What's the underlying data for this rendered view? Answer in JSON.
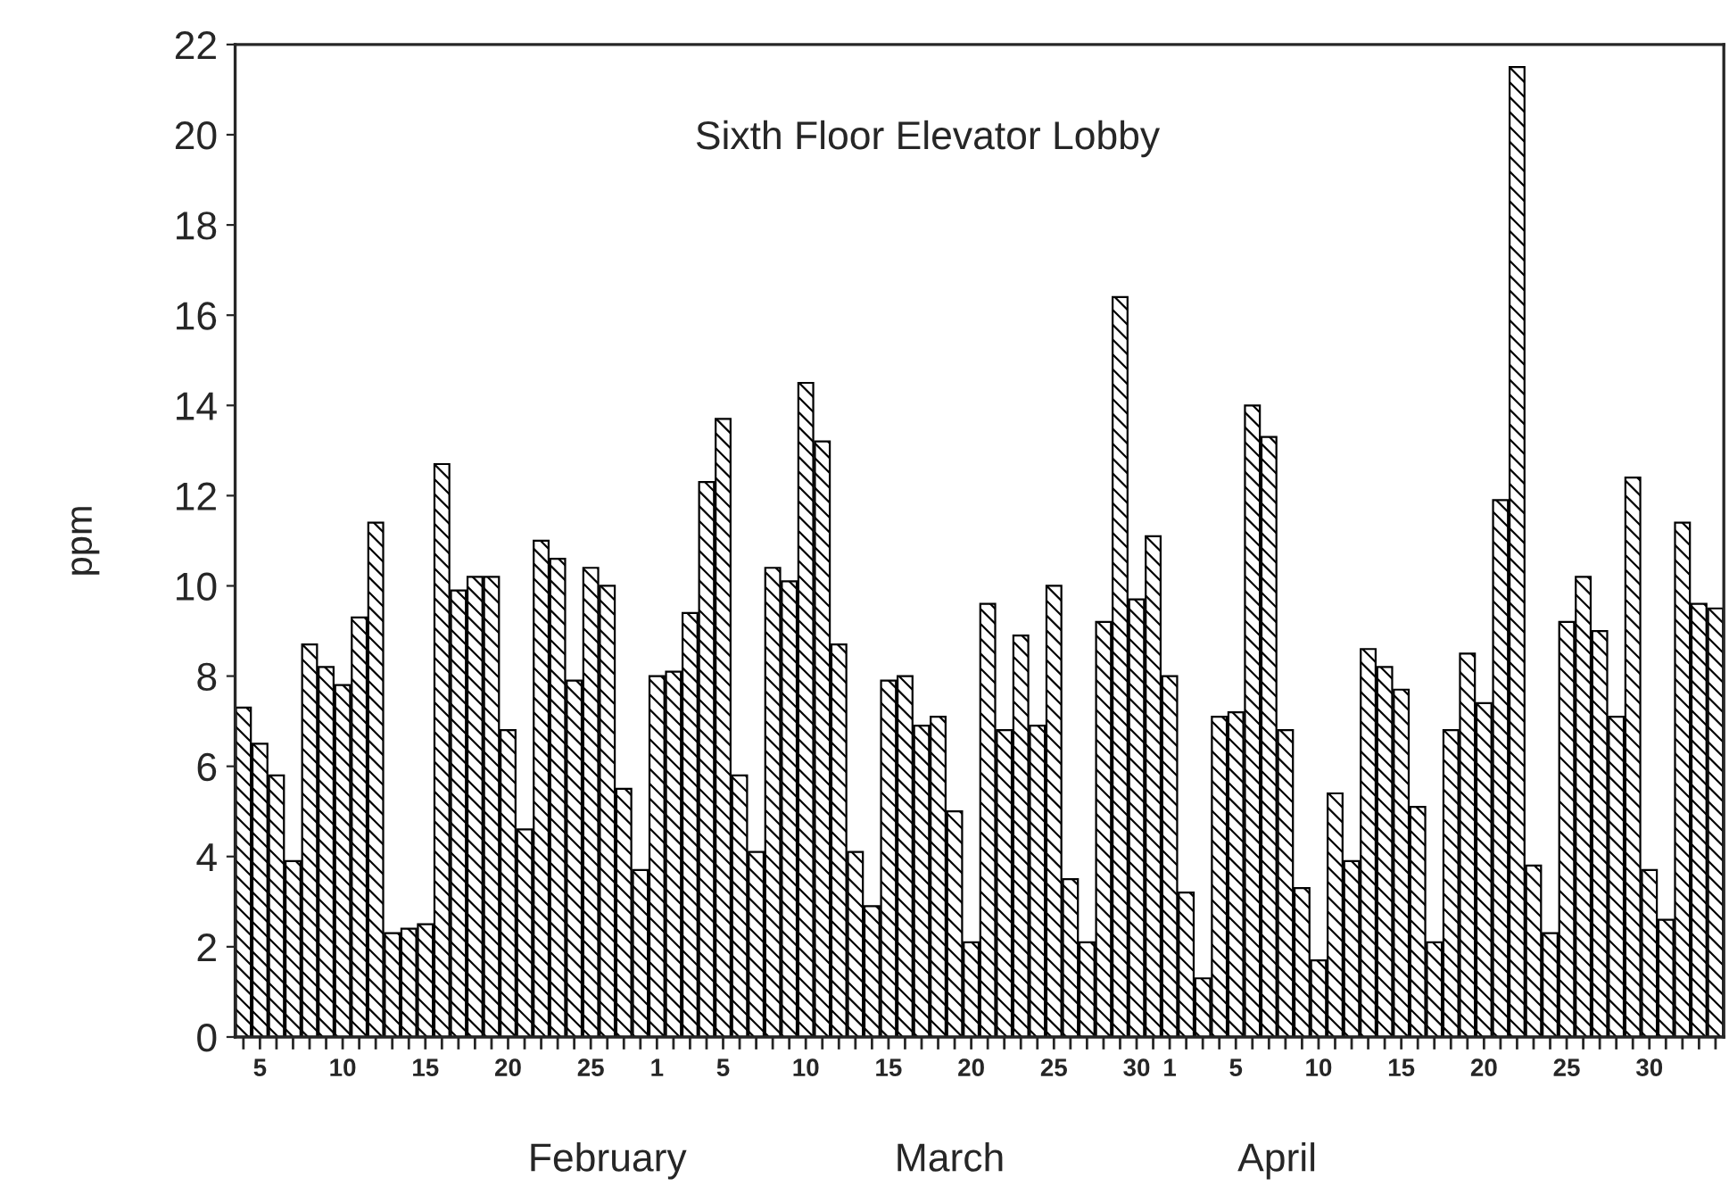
{
  "chart_data": {
    "type": "bar",
    "title": "Sixth Floor Elevator Lobby",
    "ylabel": "ppm",
    "categories": [
      null,
      "5",
      null,
      null,
      null,
      null,
      "10",
      null,
      null,
      null,
      null,
      "15",
      null,
      null,
      null,
      null,
      "20",
      null,
      null,
      null,
      null,
      "25",
      null,
      null,
      null,
      "1",
      null,
      null,
      null,
      "5",
      null,
      null,
      null,
      null,
      "10",
      null,
      null,
      null,
      null,
      "15",
      null,
      null,
      null,
      null,
      "20",
      null,
      null,
      null,
      null,
      "25",
      null,
      null,
      null,
      null,
      "30",
      null,
      "1",
      null,
      null,
      null,
      "5",
      null,
      null,
      null,
      null,
      "10",
      null,
      null,
      null,
      null,
      "15",
      null,
      null,
      null,
      null,
      "20",
      null,
      null,
      null,
      null,
      "25",
      null,
      null,
      null,
      null,
      "30",
      null,
      null,
      null,
      null
    ],
    "series": [
      {
        "color": "#000000",
        "values": [
          7.3,
          6.5,
          5.8,
          3.9,
          8.7,
          8.2,
          7.8,
          9.3,
          11.4,
          2.3,
          2.4,
          2.5,
          12.7,
          9.9,
          10.2,
          10.2,
          6.8,
          4.6,
          11.0,
          10.6,
          7.9,
          10.4,
          10.0,
          5.5,
          3.7,
          8.0,
          8.1,
          9.4,
          12.3,
          13.7,
          5.8,
          4.1,
          10.4,
          10.1,
          14.5,
          13.2,
          8.7,
          4.1,
          2.9,
          7.9,
          8.0,
          6.9,
          7.1,
          5.0,
          2.1,
          9.6,
          6.8,
          8.9,
          6.9,
          10.0,
          3.5,
          2.1,
          9.2,
          16.4,
          9.7,
          11.1,
          8.0,
          3.2,
          1.3,
          7.1,
          7.2,
          14.0,
          13.3,
          6.8,
          3.3,
          1.7,
          5.4,
          3.9,
          8.6,
          8.2,
          7.7,
          5.1,
          2.1,
          6.8,
          8.5,
          7.4,
          11.9,
          21.5,
          3.8,
          2.3,
          9.2,
          10.2,
          9.0,
          7.1,
          12.4,
          3.7,
          2.6,
          11.4,
          9.6,
          9.5
        ]
      }
    ],
    "ylim": [
      0,
      22
    ],
    "yticks": [
      0,
      2,
      4,
      6,
      8,
      10,
      12,
      14,
      16,
      18,
      20,
      22
    ],
    "grid": false,
    "legend": false,
    "annotations": [
      "February",
      "March",
      "April"
    ]
  }
}
